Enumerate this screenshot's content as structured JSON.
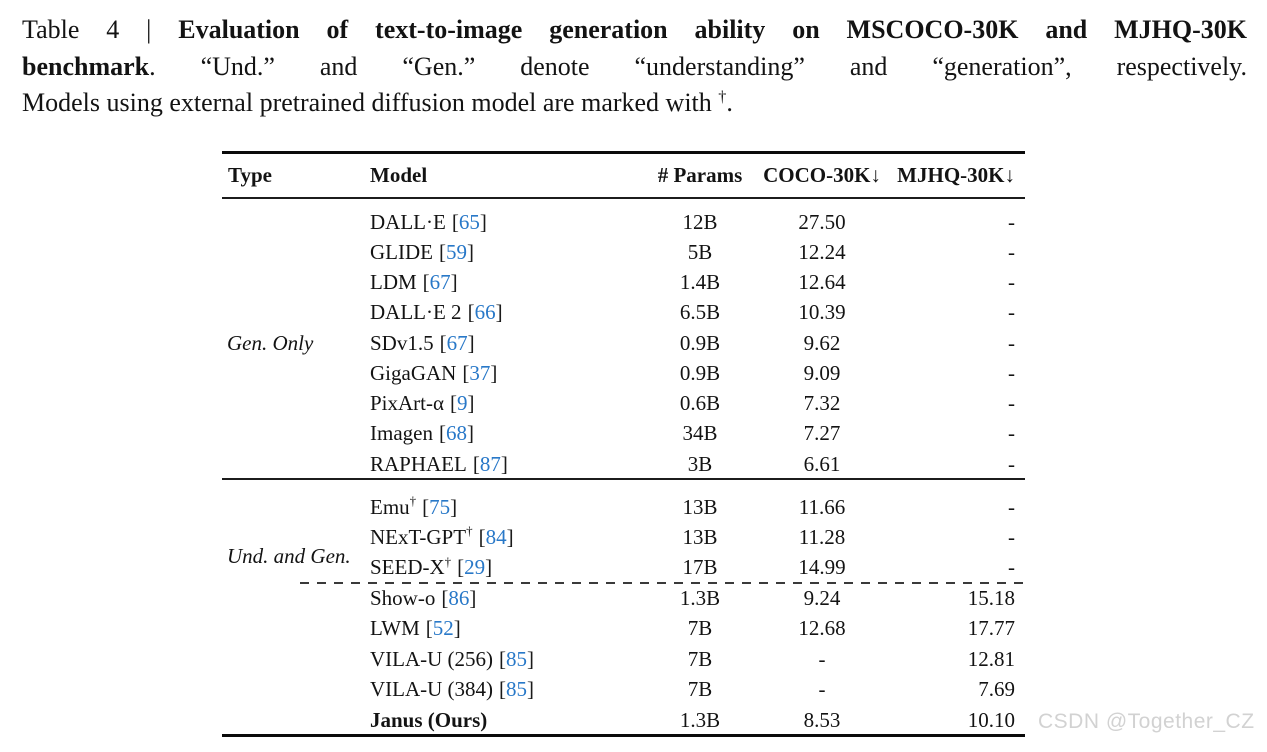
{
  "caption": {
    "lines": [
      {
        "justify": true,
        "segments": [
          {
            "text": "Table 4 | ",
            "bold": false
          },
          {
            "text": "Evaluation of text-to-image generation ability on MSCOCO-30K and MJHQ-30K",
            "bold": true
          }
        ]
      },
      {
        "justify": true,
        "segments": [
          {
            "text": "benchmark",
            "bold": true
          },
          {
            "text": ". “Und.” and “Gen.” denote “understanding” and “generation”, respectively.",
            "bold": false
          }
        ]
      },
      {
        "justify": false,
        "segments": [
          {
            "text": "Models using external pretrained diffusion model are marked with ",
            "bold": false
          },
          {
            "text": "†",
            "bold": false,
            "sup": true
          },
          {
            "text": ".",
            "bold": false
          }
        ]
      }
    ]
  },
  "table": {
    "headers": {
      "type": "Type",
      "model": "Model",
      "params": "# Params",
      "coco": "COCO-30K↓",
      "mjhq": "MJHQ-30K↓"
    },
    "cite_brackets": [
      "[",
      "]"
    ],
    "type_labels": [
      {
        "label": "Gen. Only"
      },
      {
        "label": "Und. and Gen."
      }
    ],
    "sections": [
      {
        "rows": [
          {
            "model": "DALL·E",
            "dagger": "",
            "cite": "65",
            "params": "12B",
            "coco": "27.50",
            "mjhq": "-",
            "bold": false
          },
          {
            "model": "GLIDE",
            "dagger": "",
            "cite": "59",
            "params": "5B",
            "coco": "12.24",
            "mjhq": "-",
            "bold": false
          },
          {
            "model": "LDM",
            "dagger": "",
            "cite": "67",
            "params": "1.4B",
            "coco": "12.64",
            "mjhq": "-",
            "bold": false
          },
          {
            "model": "DALL·E 2",
            "dagger": "",
            "cite": "66",
            "params": "6.5B",
            "coco": "10.39",
            "mjhq": "-",
            "bold": false
          },
          {
            "model": "SDv1.5",
            "dagger": "",
            "cite": "67",
            "params": "0.9B",
            "coco": "9.62",
            "mjhq": "-",
            "bold": false
          },
          {
            "model": "GigaGAN",
            "dagger": "",
            "cite": "37",
            "params": "0.9B",
            "coco": "9.09",
            "mjhq": "-",
            "bold": false
          },
          {
            "model": "PixArt-α",
            "dagger": "",
            "cite": "9",
            "params": "0.6B",
            "coco": "7.32",
            "mjhq": "-",
            "bold": false
          },
          {
            "model": "Imagen",
            "dagger": "",
            "cite": "68",
            "params": "34B",
            "coco": "7.27",
            "mjhq": "-",
            "bold": false
          },
          {
            "model": "RAPHAEL",
            "dagger": "",
            "cite": "87",
            "params": "3B",
            "coco": "6.61",
            "mjhq": "-",
            "bold": false
          }
        ]
      },
      {
        "rows": [
          {
            "model": "Emu",
            "dagger": "†",
            "cite": "75",
            "params": "13B",
            "coco": "11.66",
            "mjhq": "-",
            "bold": false
          },
          {
            "model": "NExT-GPT",
            "dagger": "†",
            "cite": "84",
            "params": "13B",
            "coco": "11.28",
            "mjhq": "-",
            "bold": false
          },
          {
            "model": "SEED-X",
            "dagger": "†",
            "cite": "29",
            "params": "17B",
            "coco": "14.99",
            "mjhq": "-",
            "bold": false
          }
        ]
      },
      {
        "rows": [
          {
            "model": "Show-o",
            "dagger": "",
            "cite": "86",
            "params": "1.3B",
            "coco": "9.24",
            "mjhq": "15.18",
            "bold": false
          },
          {
            "model": "LWM",
            "dagger": "",
            "cite": "52",
            "params": "7B",
            "coco": "12.68",
            "mjhq": "17.77",
            "bold": false
          },
          {
            "model": "VILA-U (256)",
            "dagger": "",
            "cite": "85",
            "params": "7B",
            "coco": "-",
            "mjhq": "12.81",
            "bold": false
          },
          {
            "model": "VILA-U (384)",
            "dagger": "",
            "cite": "85",
            "params": "7B",
            "coco": "-",
            "mjhq": "7.69",
            "bold": false
          },
          {
            "model": "Janus (Ours)",
            "dagger": "",
            "cite": "",
            "params": "1.3B",
            "coco": "8.53",
            "mjhq": "10.10",
            "bold": true
          }
        ]
      }
    ]
  },
  "colors": {
    "citation_blue": "#2878c8",
    "rule_black": "#0a0a0a",
    "watermark_gray": "#d2d2d2"
  },
  "watermark": "CSDN @Together_CZ"
}
